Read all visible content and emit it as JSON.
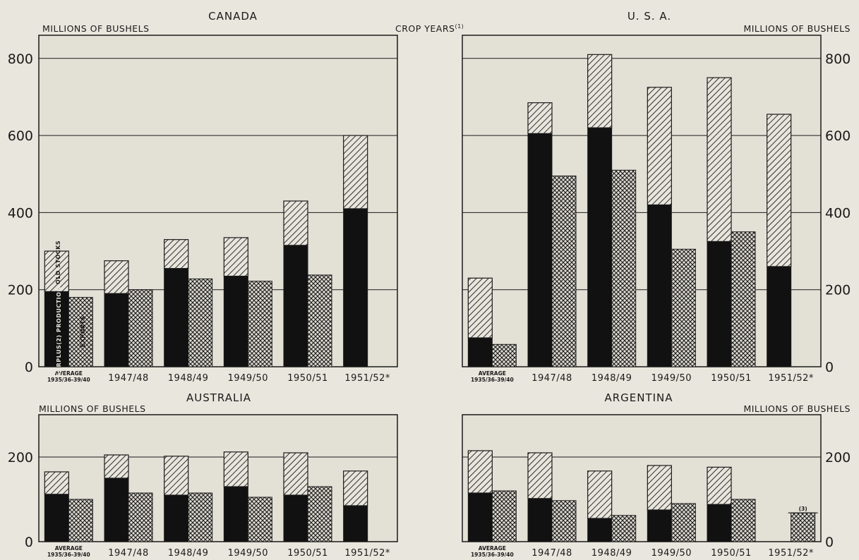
{
  "colors": {
    "background": "#e9e6dd",
    "panel_fill": "#e3e0d6",
    "ink": "#1a1a1a",
    "old_stocks": "hatched (diagonal lines)",
    "surplus_production": "#111111",
    "exports": "crosshatched"
  },
  "figure": {
    "crop_years_label": "CROP YEARS",
    "crop_years_footnote": "(1)"
  },
  "legend": {
    "old_stocks": "OLD STOCKS",
    "surplus_production": "SURPLUS(2) PRODUCTION",
    "exports": "EXPORTS"
  },
  "chart_data": [
    {
      "type": "bar",
      "title": "CANADA",
      "ylabel": "MILLIONS OF BUSHELS",
      "ylim": [
        0,
        860
      ],
      "yticks": [
        0,
        200,
        400,
        600,
        800
      ],
      "axis_side": "left",
      "grid": true,
      "categories": [
        "AVERAGE 1935/36-39/40",
        "1947/48",
        "1948/49",
        "1949/50",
        "1950/51",
        "1951/52*"
      ],
      "series": [
        {
          "name": "SURPLUS(2) PRODUCTION",
          "values": [
            195,
            190,
            255,
            235,
            315,
            410
          ]
        },
        {
          "name": "OLD STOCKS",
          "values": [
            105,
            85,
            75,
            100,
            115,
            190
          ]
        },
        {
          "name": "EXPORTS",
          "values": [
            180,
            200,
            228,
            222,
            238,
            null
          ]
        }
      ],
      "totals_supply": [
        300,
        275,
        330,
        335,
        430,
        600
      ]
    },
    {
      "type": "bar",
      "title": "U. S. A.",
      "ylabel": "MILLIONS OF BUSHELS",
      "ylim": [
        0,
        860
      ],
      "yticks": [
        0,
        200,
        400,
        600,
        800
      ],
      "axis_side": "right",
      "grid": true,
      "categories": [
        "AVERAGE 1935/36-39/40",
        "1947/48",
        "1948/49",
        "1949/50",
        "1950/51",
        "1951/52*"
      ],
      "series": [
        {
          "name": "SURPLUS(2) PRODUCTION",
          "values": [
            75,
            605,
            620,
            420,
            325,
            260
          ]
        },
        {
          "name": "OLD STOCKS",
          "values": [
            155,
            80,
            190,
            305,
            425,
            395
          ]
        },
        {
          "name": "EXPORTS",
          "values": [
            58,
            495,
            510,
            305,
            350,
            null
          ]
        }
      ],
      "totals_supply": [
        230,
        685,
        810,
        725,
        750,
        655
      ]
    },
    {
      "type": "bar",
      "title": "AUSTRALIA",
      "ylabel": "MILLIONS OF BUSHELS",
      "ylim": [
        0,
        300
      ],
      "yticks": [
        0,
        200
      ],
      "axis_side": "left",
      "grid": true,
      "categories": [
        "AVERAGE 1935/36-39/40",
        "1947/48",
        "1948/49",
        "1949/50",
        "1950/51",
        "1951/52*"
      ],
      "series": [
        {
          "name": "SURPLUS(2) PRODUCTION",
          "values": [
            112,
            150,
            110,
            130,
            110,
            85
          ]
        },
        {
          "name": "OLD STOCKS",
          "values": [
            53,
            55,
            92,
            82,
            100,
            82
          ]
        },
        {
          "name": "EXPORTS",
          "values": [
            100,
            115,
            115,
            105,
            130,
            null
          ]
        }
      ],
      "totals_supply": [
        165,
        205,
        202,
        212,
        210,
        167
      ]
    },
    {
      "type": "bar",
      "title": "ARGENTINA",
      "ylabel": "MILLIONS OF BUSHELS",
      "ylim": [
        0,
        300
      ],
      "yticks": [
        0,
        200
      ],
      "axis_side": "right",
      "grid": true,
      "categories": [
        "AVERAGE 1935/36-39/40",
        "1947/48",
        "1948/49",
        "1949/50",
        "1950/51",
        "1951/52*"
      ],
      "series": [
        {
          "name": "SURPLUS(2) PRODUCTION",
          "values": [
            115,
            102,
            55,
            75,
            88,
            null
          ]
        },
        {
          "name": "OLD STOCKS",
          "values": [
            100,
            108,
            112,
            105,
            88,
            null
          ]
        },
        {
          "name": "EXPORTS",
          "values": [
            120,
            97,
            62,
            90,
            100,
            68
          ]
        }
      ],
      "totals_supply": [
        215,
        210,
        167,
        180,
        176,
        null
      ],
      "annotations": [
        "(3)"
      ]
    }
  ]
}
